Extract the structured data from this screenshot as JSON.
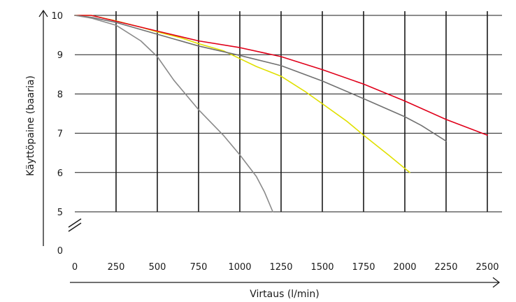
{
  "chart_data": {
    "type": "line",
    "title": "",
    "xlabel": "Virtaus (l/min)",
    "ylabel": "Käyttöpaine (baaria)",
    "xlim": [
      0,
      2500
    ],
    "ylim": [
      5,
      10
    ],
    "x_ticks": [
      "0",
      "250",
      "500",
      "750",
      "1000",
      "1250",
      "1500",
      "1750",
      "2000",
      "2250",
      "2500"
    ],
    "y_ticks": [
      "0",
      "5",
      "6",
      "7",
      "8",
      "9",
      "10"
    ],
    "grid": true,
    "axis_break": "y between 0 and 5",
    "series": [
      {
        "color": "#e0e000",
        "x": [
          0,
          100,
          250,
          400,
          500,
          650,
          750,
          900,
          1000,
          1100,
          1250,
          1400,
          1500,
          1650,
          1750,
          1900,
          2030
        ],
        "y": [
          10.0,
          10.0,
          9.86,
          9.7,
          9.58,
          9.42,
          9.28,
          9.1,
          8.9,
          8.7,
          8.45,
          8.05,
          7.75,
          7.3,
          6.95,
          6.45,
          6.0
        ]
      },
      {
        "color": "#e0001a",
        "x": [
          0,
          100,
          250,
          500,
          750,
          1000,
          1250,
          1500,
          1750,
          2000,
          2250,
          2500
        ],
        "y": [
          10.0,
          10.0,
          9.85,
          9.6,
          9.35,
          9.18,
          8.95,
          8.62,
          8.25,
          7.82,
          7.35,
          6.95
        ]
      },
      {
        "color": "#707070",
        "x": [
          0,
          100,
          250,
          500,
          750,
          1000,
          1250,
          1500,
          1750,
          2000,
          2100,
          2250
        ],
        "y": [
          10.0,
          9.95,
          9.82,
          9.52,
          9.22,
          8.98,
          8.72,
          8.33,
          7.88,
          7.42,
          7.2,
          6.8
        ]
      },
      {
        "color": "#8a8a8a",
        "x": [
          0,
          100,
          250,
          400,
          500,
          600,
          750,
          900,
          1000,
          1100,
          1150,
          1200
        ],
        "y": [
          10.0,
          9.93,
          9.75,
          9.35,
          8.95,
          8.35,
          7.6,
          6.95,
          6.45,
          5.9,
          5.5,
          5.0
        ]
      }
    ]
  }
}
